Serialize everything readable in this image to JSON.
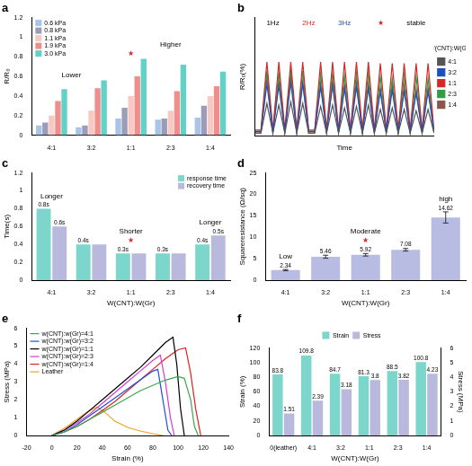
{
  "chart_data": [
    {
      "type": "bar",
      "title": "a",
      "ylabel": "R/R₀",
      "categories": [
        "4:1",
        "3:2",
        "1:1",
        "2:3",
        "1:4"
      ],
      "series": [
        {
          "name": "0.6 kPa",
          "color": "#a9c4e6",
          "values": [
            0.1,
            0.08,
            0.17,
            0.16,
            0.18
          ]
        },
        {
          "name": "0.8 kPa",
          "color": "#9b9db8",
          "values": [
            0.13,
            0.1,
            0.28,
            0.17,
            0.3
          ]
        },
        {
          "name": "1.1 kPa",
          "color": "#f6c9c2",
          "values": [
            0.2,
            0.25,
            0.4,
            0.25,
            0.4
          ]
        },
        {
          "name": "1.9 kPa",
          "color": "#f08e8e",
          "values": [
            0.35,
            0.48,
            0.6,
            0.45,
            0.5
          ]
        },
        {
          "name": "3.0 kPa",
          "color": "#62d2c6",
          "values": [
            0.47,
            0.56,
            0.78,
            0.72,
            0.65
          ]
        }
      ],
      "ylim": [
        0,
        1.2
      ],
      "yticks": [
        0,
        0.2,
        0.4,
        0.6,
        0.8,
        1,
        1.2
      ],
      "grid": false,
      "legend": "top-left",
      "annotations": [
        {
          "text": "Lower",
          "categories": [
            "4:1",
            "3:2"
          ],
          "color": "#000000"
        },
        {
          "text": "★",
          "categories": [
            "1:1"
          ],
          "color": "#d62728"
        },
        {
          "text": "Higher",
          "categories": [
            "1:1",
            "2:3",
            "1:4"
          ],
          "color": "#000000"
        }
      ]
    },
    {
      "type": "line",
      "title": "b",
      "xlabel": "Time",
      "ylabel": "R/R₀(%)",
      "zlabel": "W(CNT):W(Gr)",
      "x": [
        0,
        0.5,
        1,
        1.5,
        2,
        2.5,
        3,
        3.5,
        4,
        4.5,
        5,
        5.5,
        6,
        6.5,
        7,
        7.5,
        8,
        8.5,
        9,
        9.5,
        10,
        10.5,
        11,
        11.5,
        12,
        12.5,
        13,
        13.5,
        14,
        14.5,
        15
      ],
      "xlim": [
        0,
        15
      ],
      "ylim": [
        0,
        80
      ],
      "tick_labels": false,
      "grid": false,
      "legend": "right",
      "series": [
        {
          "name": "4:1",
          "color": "#555555",
          "values": [
            2,
            2,
            22,
            2,
            21,
            2,
            23,
            2,
            22,
            2,
            2,
            20,
            2,
            21,
            2,
            19,
            2,
            20,
            2,
            21,
            2,
            18,
            2,
            19,
            2,
            18,
            2,
            17,
            2,
            18,
            2
          ]
        },
        {
          "name": "3:2",
          "color": "#1f4fbf",
          "values": [
            3,
            3,
            35,
            3,
            34,
            3,
            36,
            3,
            35,
            3,
            3,
            33,
            3,
            34,
            3,
            32,
            3,
            33,
            3,
            32,
            3,
            30,
            3,
            31,
            3,
            30,
            3,
            29,
            3,
            30,
            3
          ]
        },
        {
          "name": "1:1",
          "color": "#d62728",
          "values": [
            4,
            4,
            50,
            4,
            50,
            4,
            50,
            4,
            50,
            4,
            4,
            50,
            4,
            50,
            4,
            50,
            4,
            50,
            4,
            50,
            4,
            49,
            4,
            49,
            4,
            49,
            4,
            49,
            4,
            49,
            4
          ]
        },
        {
          "name": "2:3",
          "color": "#2f9e44",
          "values": [
            3,
            3,
            44,
            3,
            43,
            3,
            45,
            3,
            44,
            3,
            3,
            42,
            3,
            43,
            3,
            41,
            3,
            42,
            3,
            43,
            3,
            40,
            3,
            39,
            3,
            41,
            3,
            40,
            3,
            39,
            3
          ]
        },
        {
          "name": "1:4",
          "color": "#8c564b",
          "values": [
            2,
            2,
            40,
            2,
            38,
            2,
            41,
            2,
            37,
            2,
            2,
            36,
            2,
            38,
            2,
            35,
            2,
            37,
            2,
            36,
            2,
            33,
            2,
            35,
            2,
            34,
            2,
            32,
            2,
            33,
            2
          ]
        }
      ],
      "annotations": [
        {
          "text": "1Hz",
          "color": "#000000"
        },
        {
          "text": "2Hz",
          "color": "#d62728"
        },
        {
          "text": "3Hz",
          "color": "#1f4fbf"
        },
        {
          "text": "★",
          "color": "#d62728"
        },
        {
          "text": "stable",
          "color": "#000000"
        }
      ]
    },
    {
      "type": "bar",
      "title": "c",
      "xlabel": "W(CNT):W(Gr)",
      "ylabel": "Time(s)",
      "categories": [
        "4:1",
        "3:2",
        "1:1",
        "2:3",
        "1:4"
      ],
      "series": [
        {
          "name": "response time",
          "color": "#7dd6cb",
          "values": [
            0.8,
            0.4,
            0.3,
            0.3,
            0.4
          ],
          "value_labels": [
            "0.8s",
            "0.4s",
            "0.3s",
            "0.3s",
            "0.4s"
          ]
        },
        {
          "name": "recovery time",
          "color": "#b9b9dd",
          "values": [
            0.6,
            0.4,
            0.3,
            0.3,
            0.5
          ],
          "value_labels": [
            "0.6s",
            null,
            null,
            null,
            "0.5s"
          ]
        }
      ],
      "ylim": [
        0,
        1.2
      ],
      "yticks": [
        0,
        0.2,
        0.4,
        0.6,
        0.8,
        1,
        1.2
      ],
      "grid": false,
      "legend": "top-right",
      "data_labels": true,
      "annotations": [
        {
          "text": "Longer",
          "categories": [
            "4:1"
          ],
          "color": "#000000"
        },
        {
          "text": "★",
          "categories": [
            "1:1"
          ],
          "color": "#d62728"
        },
        {
          "text": "Shorter",
          "categories": [
            "1:1"
          ],
          "color": "#000000"
        },
        {
          "text": "Longer",
          "categories": [
            "1:4"
          ],
          "color": "#000000"
        }
      ]
    },
    {
      "type": "bar",
      "title": "d",
      "xlabel": "W(CNT):W(Gr)",
      "ylabel": "Squareresistance (Ω/sq)",
      "categories": [
        "4:1",
        "3:2",
        "1:1",
        "2:3",
        "1:4"
      ],
      "values": [
        2.34,
        5.46,
        5.92,
        7.08,
        14.62
      ],
      "errors": [
        0.15,
        0.35,
        0.3,
        0.3,
        1.3
      ],
      "color": "#b9bce2",
      "ylim": [
        0,
        25
      ],
      "yticks": [
        0,
        5,
        10,
        15,
        20,
        25
      ],
      "grid": false,
      "data_labels": true,
      "annotations": [
        {
          "text": "Low",
          "categories": [
            "4:1"
          ],
          "color": "#000000"
        },
        {
          "text": "★",
          "categories": [
            "1:1"
          ],
          "color": "#d62728"
        },
        {
          "text": "Moderate",
          "categories": [
            "1:1"
          ],
          "color": "#000000"
        },
        {
          "text": "high",
          "categories": [
            "1:4"
          ],
          "color": "#000000"
        }
      ]
    },
    {
      "type": "line",
      "title": "e",
      "xlabel": "Strain (%)",
      "ylabel": "Stress (MPa)",
      "xlim": [
        -20,
        140
      ],
      "xticks": [
        -20,
        0,
        20,
        40,
        60,
        80,
        100,
        120,
        140
      ],
      "ylim": [
        0,
        6
      ],
      "yticks": [
        0,
        1,
        2,
        3,
        4,
        5,
        6
      ],
      "grid": false,
      "legend": "top-left",
      "series": [
        {
          "name": "w(CNT):w(Gr)=4:1",
          "color": "#3aa84a",
          "x": [
            0,
            10,
            20,
            30,
            40,
            50,
            60,
            70,
            80,
            90,
            100,
            105,
            110,
            113,
            116
          ],
          "values": [
            0,
            0.2,
            0.5,
            0.9,
            1.3,
            1.7,
            2.1,
            2.5,
            2.8,
            3.1,
            3.3,
            3.2,
            2.0,
            0.5,
            0
          ]
        },
        {
          "name": "w(CNT):w(Gr)=3:2",
          "color": "#1f4fd8",
          "x": [
            0,
            10,
            20,
            30,
            40,
            50,
            60,
            70,
            80,
            84,
            88,
            92,
            95
          ],
          "values": [
            0,
            0.2,
            0.6,
            1.1,
            1.6,
            2.1,
            2.6,
            3.1,
            3.6,
            3.7,
            2.0,
            0.3,
            0
          ]
        },
        {
          "name": "w(CNT):w(Gr)=1:1",
          "color": "#000000",
          "x": [
            0,
            10,
            20,
            30,
            40,
            50,
            60,
            70,
            80,
            90,
            96,
            99,
            102,
            105
          ],
          "values": [
            0,
            0.3,
            0.8,
            1.4,
            2.0,
            2.6,
            3.2,
            3.8,
            4.5,
            5.2,
            5.5,
            4.0,
            1.5,
            0
          ]
        },
        {
          "name": "w(CNT):w(Gr)=2:3",
          "color": "#d63ad6",
          "x": [
            0,
            10,
            20,
            30,
            40,
            50,
            60,
            70,
            80,
            86,
            90,
            94,
            97
          ],
          "values": [
            0,
            0.3,
            0.7,
            1.2,
            1.8,
            2.4,
            3.0,
            3.6,
            4.2,
            4.5,
            3.0,
            1.0,
            0
          ]
        },
        {
          "name": "w(CNT):w(Gr)=1:4",
          "color": "#e02020",
          "x": [
            0,
            10,
            20,
            30,
            40,
            50,
            60,
            70,
            80,
            90,
            100,
            106,
            110,
            114,
            118
          ],
          "values": [
            0,
            0.2,
            0.5,
            0.9,
            1.4,
            1.9,
            2.5,
            3.1,
            3.7,
            4.3,
            4.8,
            4.9,
            3.5,
            1.5,
            0
          ]
        },
        {
          "name": "Leather",
          "color": "#f0a020",
          "x": [
            0,
            10,
            20,
            30,
            36,
            42,
            50,
            60,
            70,
            80,
            88
          ],
          "values": [
            0,
            0.4,
            0.9,
            1.4,
            1.6,
            1.3,
            0.8,
            0.45,
            0.25,
            0.1,
            0
          ]
        }
      ]
    },
    {
      "type": "bar",
      "title": "f",
      "xlabel": "W(CNT):W(Gr)",
      "ylabel": "Strain (%)",
      "y2label": "Stress (MPa)",
      "categories": [
        "0(leather)",
        "4:1",
        "3:2",
        "1:1",
        "2:3",
        "1:4"
      ],
      "series": [
        {
          "name": "Strain",
          "color": "#7dd6cb",
          "values": [
            83.8,
            109.8,
            84.7,
            81.3,
            88.5,
            100.8
          ]
        },
        {
          "name": "Stress",
          "color": "#b9b9dd",
          "axis": "y2",
          "values": [
            1.51,
            2.39,
            3.18,
            3.8,
            3.82,
            4.23
          ]
        }
      ],
      "ylim": [
        0,
        120
      ],
      "yticks": [
        0,
        20,
        40,
        60,
        80,
        100,
        120
      ],
      "y2lim": [
        0,
        6
      ],
      "y2ticks": [
        0,
        1,
        2,
        3,
        4,
        5,
        6
      ],
      "grid": false,
      "legend": "top",
      "data_labels": true
    }
  ]
}
